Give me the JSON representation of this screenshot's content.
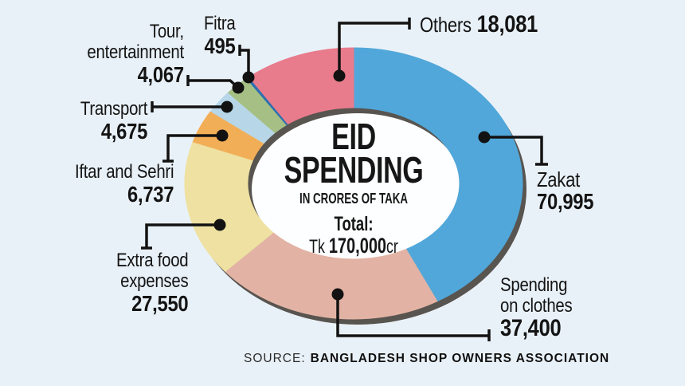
{
  "page": {
    "background_color": "#e9f1f8"
  },
  "center": {
    "title_line1": "EID",
    "title_line2": "SPENDING",
    "subtitle": "IN CRORES OF TAKA",
    "total_label": "Total:",
    "total_prefix": "Tk",
    "total_value": "170,000",
    "total_suffix": "cr"
  },
  "source": {
    "prefix": "SOURCE:",
    "name": "BANGLADESH SHOP OWNERS ASSOCIATION"
  },
  "callouts": {
    "others": {
      "line1": "Others",
      "value": "18,081"
    },
    "zakat": {
      "line1": "Zakat",
      "value": "70,995"
    },
    "clothes": {
      "line1": "Spending",
      "line2": "on clothes",
      "value": "37,400"
    },
    "extra_food": {
      "line1": "Extra food",
      "line2": "expenses",
      "value": "27,550"
    },
    "iftar": {
      "line1": "Iftar and Sehri",
      "value": "6,737"
    },
    "transport": {
      "line1": "Transport",
      "value": "4,675"
    },
    "tour": {
      "line1": "Tour,",
      "line2": "entertainment",
      "value": "4,067"
    },
    "fitra": {
      "line1": "Fitra",
      "value": "495"
    }
  },
  "chart_data": {
    "type": "pie",
    "variant": "donut",
    "title": "EID SPENDING",
    "subtitle": "IN CRORES OF TAKA",
    "units": "crores of taka",
    "total": 170000,
    "total_display": "Tk 170,000cr",
    "start_angle_deg": 0,
    "direction": "clockwise",
    "legend_position": "callouts-around-donut",
    "slices": [
      {
        "label": "Zakat",
        "value": 70995,
        "display": "70,995",
        "color": "#51a7d9"
      },
      {
        "label": "Spending on clothes",
        "value": 37400,
        "display": "37,400",
        "color": "#e2b3a4"
      },
      {
        "label": "Extra food expenses",
        "value": 27550,
        "display": "27,550",
        "color": "#eee1a1"
      },
      {
        "label": "Iftar and Sehri",
        "value": 6737,
        "display": "6,737",
        "color": "#f2ae57"
      },
      {
        "label": "Transport",
        "value": 4675,
        "display": "4,675",
        "color": "#b7d7e8"
      },
      {
        "label": "Tour, entertainment",
        "value": 4067,
        "display": "4,067",
        "color": "#a5bf85"
      },
      {
        "label": "Fitra",
        "value": 495,
        "display": "495",
        "color": "#2d6faf"
      },
      {
        "label": "Others",
        "value": 18081,
        "display": "18,081",
        "color": "#e87c8c"
      }
    ],
    "colors": {
      "shadow": "#58544f",
      "hole": "#fdfeff",
      "callout_line": "#121212"
    }
  }
}
